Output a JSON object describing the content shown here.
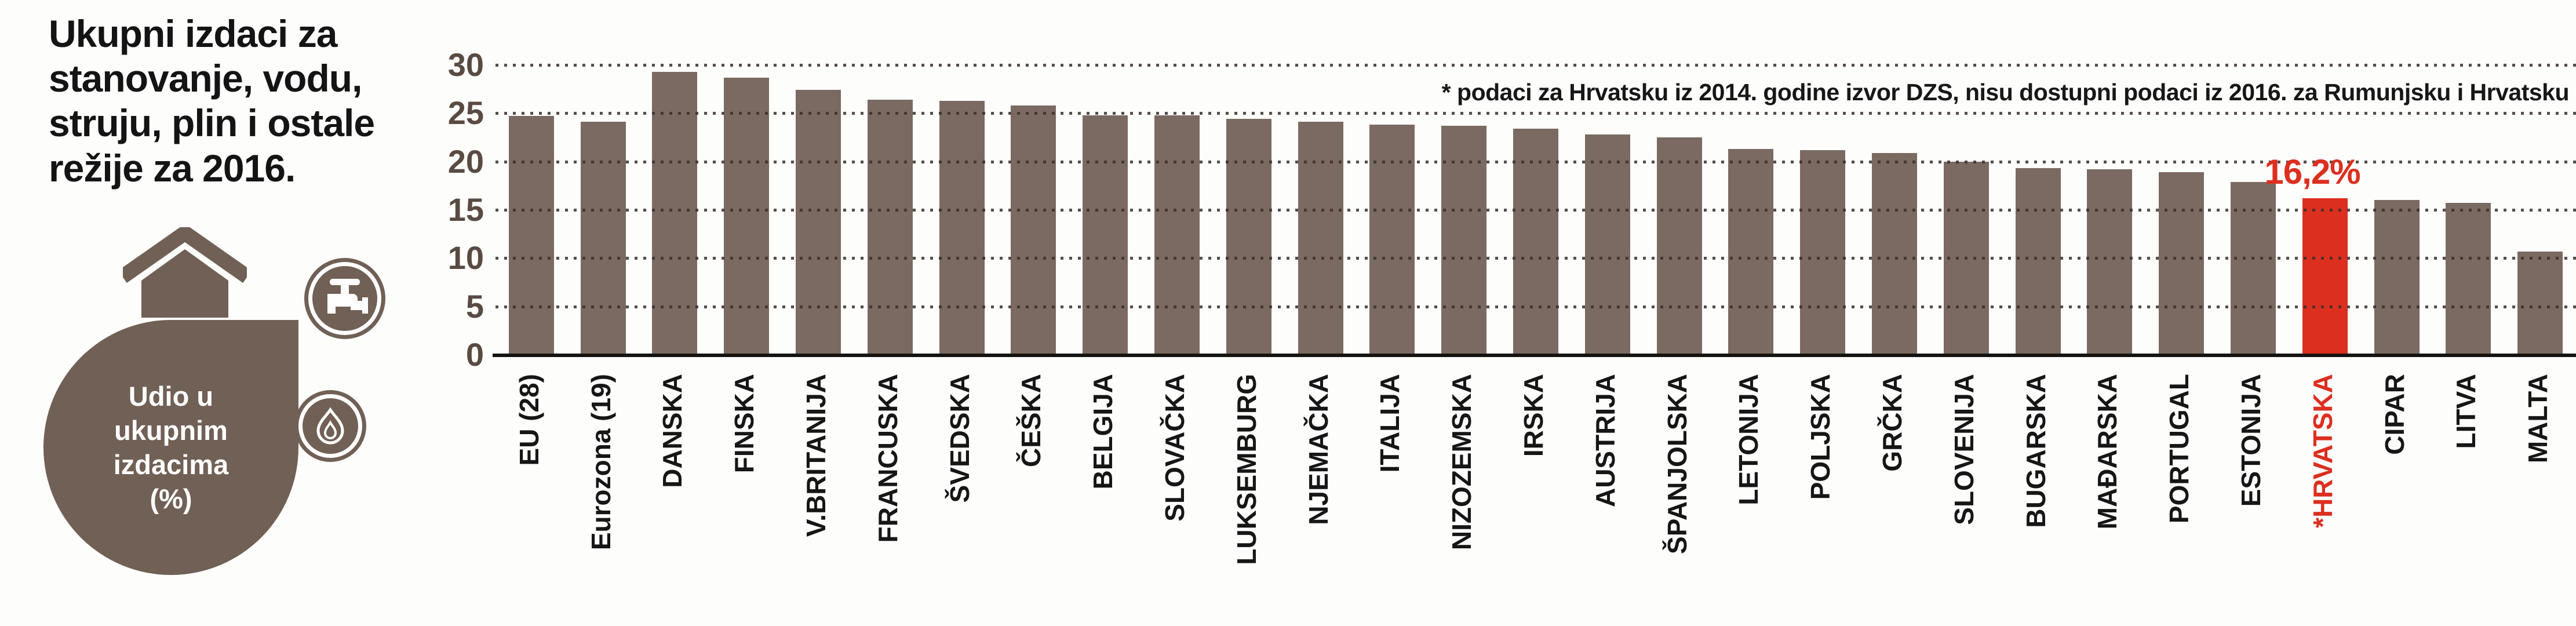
{
  "panel": {
    "title": "Ukupni izdaci za stanovanje, vodu, struju, plin i ostale režije za 2016.",
    "title_lines": [
      "Ukupni izdaci za",
      "stanovanje, vodu,",
      "struju, plin i ostale",
      "režije za 2016."
    ],
    "bubble_label": "Udio u ukupnim izdacima (%)",
    "bubble_lines": [
      "Udio u",
      "ukupnim",
      "izdacima",
      "(%)"
    ],
    "icons": [
      "house-icon",
      "water-tap-icon",
      "flame-icon"
    ]
  },
  "footnote": "* podaci za Hrvatsku iz 2014. godine izvor DZS, nisu dostupni podaci iz 2016. za Rumunjsku i Hrvatsku",
  "highlight": {
    "value_label": "16,2%",
    "category": "*HRVATSKA"
  },
  "colors": {
    "bar": "#7b6a61",
    "highlight": "#dc2f1f",
    "panel_taupe": "#716055",
    "grid_dot": "#38302b",
    "tick_text": "#594b42",
    "axis": "#151312",
    "bubble_text": "#ffffff"
  },
  "chart_data": {
    "type": "bar",
    "title": "Ukupni izdaci za stanovanje, vodu, struju, plin i ostale režije za 2016. — udio u ukupnim izdacima (%)",
    "categories": [
      "EU (28)",
      "Eurozona (19)",
      "DANSKA",
      "FINSKA",
      "V.BRITANIJA",
      "FRANCUSKA",
      "ŠVEDSKA",
      "ČEŠKA",
      "BELGIJA",
      "SLOVAČKA",
      "LUKSEMBURG",
      "NJEMAČKA",
      "ITALIJA",
      "NIZOZEMSKA",
      "IRSKA",
      "AUSTRIJA",
      "ŠPANJOLSKA",
      "LETONIJA",
      "POLJSKA",
      "GRČKA",
      "SLOVENIJA",
      "BUGARSKA",
      "MAĐARSKA",
      "PORTUGAL",
      "ESTONIJA",
      "*HRVATSKA",
      "CIPAR",
      "LITVA",
      "MALTA"
    ],
    "values": [
      24.7,
      24.1,
      29.3,
      28.7,
      27.4,
      26.4,
      26.3,
      25.8,
      24.8,
      24.8,
      24.4,
      24.1,
      23.8,
      23.7,
      23.4,
      22.8,
      22.5,
      21.3,
      21.2,
      20.9,
      20.0,
      19.3,
      19.2,
      18.9,
      17.9,
      16.2,
      16.0,
      15.7,
      10.7
    ],
    "highlight_index": 25,
    "xlabel": "",
    "ylabel": "Udio u ukupnim izdacima (%)",
    "ylim": [
      0,
      30
    ],
    "yticks": [
      0,
      5,
      10,
      15,
      20,
      25,
      30
    ],
    "grid": "dotted-horizontal",
    "legend": "none",
    "annotations": [
      {
        "text": "16,2%",
        "target": "*HRVATSKA"
      },
      {
        "text": "* podaci za Hrvatsku iz 2014. godine izvor DZS, nisu dostupni podaci iz 2016. za Rumunjsku i Hrvatsku",
        "position": "top-right"
      }
    ]
  }
}
